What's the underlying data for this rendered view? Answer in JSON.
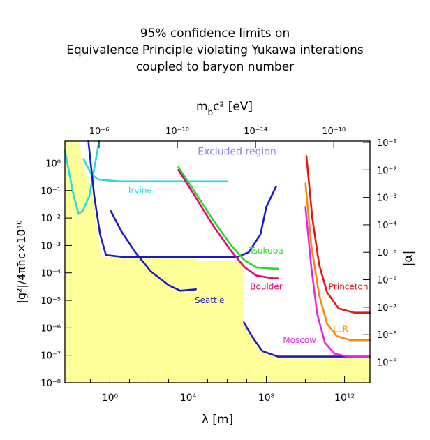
{
  "title_lines": [
    "95% confidence limits on",
    "Equivalence Principle violating Yukawa interations",
    "coupled to baryon number"
  ],
  "colors": {
    "excluded_fill": "#ffff99",
    "irvine": "#22dddd",
    "seattle": "#1a1acc",
    "tsukuba": "#22dd22",
    "boulder": "#ee0077",
    "princeton": "#ee1111",
    "llr": "#ff8800",
    "moscow": "#ee22ee",
    "excluded_label": "#8888ee"
  },
  "chart_data": {
    "type": "line",
    "xlabel": "λ [m]",
    "ylabel": "|g²|/4πħc×10⁴⁰",
    "top_axis_label": "m_bc² [eV]",
    "right_axis_label": "|α|",
    "x_scale": "log",
    "y_scale": "log",
    "xlim_log10": [
      -2.3,
      13.3
    ],
    "ylim_log10": [
      -8,
      0.8
    ],
    "x_ticks": [
      {
        "exp": 0,
        "label": "10⁰"
      },
      {
        "exp": 4,
        "label": "10⁴"
      },
      {
        "exp": 8,
        "label": "10⁸"
      },
      {
        "exp": 12,
        "label": "10¹²"
      }
    ],
    "y_ticks": [
      {
        "exp": 0,
        "label": "10⁰"
      },
      {
        "exp": -1,
        "label": "10⁻¹"
      },
      {
        "exp": -2,
        "label": "10⁻²"
      },
      {
        "exp": -3,
        "label": "10⁻³"
      },
      {
        "exp": -4,
        "label": "10⁻⁴"
      },
      {
        "exp": -5,
        "label": "10⁻⁵"
      },
      {
        "exp": -6,
        "label": "10⁻⁶"
      },
      {
        "exp": -7,
        "label": "10⁻⁷"
      },
      {
        "exp": -8,
        "label": "10⁻⁸"
      }
    ],
    "top_ticks": [
      {
        "x_exp": -0.55,
        "label": "10⁻⁶"
      },
      {
        "x_exp": 3.45,
        "label": "10⁻¹⁰"
      },
      {
        "x_exp": 7.45,
        "label": "10⁻¹⁴"
      },
      {
        "x_exp": 11.45,
        "label": "10⁻¹⁸"
      }
    ],
    "right_ticks": [
      {
        "y_exp": 0.75,
        "label": "10⁻¹"
      },
      {
        "y_exp": -0.25,
        "label": "10⁻²"
      },
      {
        "y_exp": -1.25,
        "label": "10⁻³"
      },
      {
        "y_exp": -2.25,
        "label": "10⁻⁴"
      },
      {
        "y_exp": -3.25,
        "label": "10⁻⁵"
      },
      {
        "y_exp": -4.25,
        "label": "10⁻⁶"
      },
      {
        "y_exp": -5.25,
        "label": "10⁻⁷"
      },
      {
        "y_exp": -6.25,
        "label": "10⁻⁸"
      },
      {
        "y_exp": -7.25,
        "label": "10⁻⁹"
      }
    ],
    "excluded_label": {
      "text": "Excluded region",
      "x_exp": 6.5,
      "y_exp": 0.3
    },
    "excluded_area": [
      [
        -2.3,
        0.8
      ],
      [
        -2.3,
        -8
      ],
      [
        13.3,
        -8
      ],
      [
        13.3,
        -7.05
      ],
      [
        8.8,
        -7.05
      ],
      [
        8.0,
        -6.95
      ],
      [
        7.4,
        -6.4
      ],
      [
        6.85,
        -5.8
      ],
      [
        6.85,
        -3.55
      ],
      [
        4.4,
        -3.55
      ],
      [
        4.4,
        -3.42
      ],
      [
        3.5,
        -3.42
      ],
      [
        2.0,
        -3.42
      ],
      [
        -0.4,
        -3.42
      ],
      [
        -0.5,
        -3.2
      ],
      [
        -0.85,
        -1.2
      ],
      [
        -1.3,
        -0.2
      ],
      [
        -1.6,
        0.8
      ]
    ],
    "series": [
      {
        "name": "Irvine",
        "color_key": "irvine",
        "label_at": [
          1.55,
          -1.1
        ],
        "segments": [
          [
            [
              -0.55,
              0.8
            ],
            [
              -0.75,
              0.0
            ],
            [
              -1.05,
              -1.2
            ],
            [
              -1.4,
              -1.75
            ],
            [
              -1.6,
              -1.85
            ],
            [
              -1.85,
              -1.2
            ],
            [
              -2.3,
              0.45
            ]
          ],
          [
            [
              -1.35,
              0.15
            ],
            [
              -0.95,
              -0.4
            ],
            [
              -0.6,
              -0.6
            ],
            [
              0.5,
              -0.67
            ],
            [
              6.0,
              -0.67
            ]
          ]
        ]
      },
      {
        "name": "Seattle",
        "color_key": "seattle",
        "label_at": [
          5.1,
          -5.1
        ],
        "segments": [
          [
            [
              -1.1,
              0.8
            ],
            [
              -0.8,
              -1.2
            ],
            [
              -0.5,
              -2.6
            ],
            [
              -0.2,
              -3.35
            ],
            [
              0.7,
              -3.42
            ],
            [
              4.4,
              -3.42
            ],
            [
              6.5,
              -3.42
            ],
            [
              7.1,
              -3.25
            ],
            [
              7.7,
              -2.6
            ],
            [
              8.0,
              -1.6
            ],
            [
              8.5,
              -0.85
            ]
          ],
          [
            [
              0.05,
              -1.75
            ],
            [
              0.6,
              -2.5
            ],
            [
              1.3,
              -3.25
            ],
            [
              2.1,
              -3.95
            ],
            [
              3.0,
              -4.45
            ],
            [
              3.6,
              -4.65
            ],
            [
              4.4,
              -4.6
            ]
          ],
          [
            [
              6.85,
              -5.8
            ],
            [
              7.3,
              -6.35
            ],
            [
              7.8,
              -6.85
            ],
            [
              8.6,
              -7.05
            ],
            [
              13.3,
              -7.05
            ]
          ]
        ]
      },
      {
        "name": "Tsukuba",
        "color_key": "tsukuba",
        "label_at": [
          8.0,
          -3.3
        ],
        "segments": [
          [
            [
              3.5,
              -0.15
            ],
            [
              4.3,
              -1.0
            ],
            [
              5.3,
              -2.1
            ],
            [
              6.2,
              -3.0
            ],
            [
              6.9,
              -3.55
            ],
            [
              7.5,
              -3.8
            ],
            [
              8.4,
              -3.85
            ],
            [
              8.6,
              -3.85
            ]
          ]
        ]
      },
      {
        "name": "Boulder",
        "color_key": "boulder",
        "label_at": [
          8.0,
          -4.6
        ],
        "segments": [
          [
            [
              3.5,
              -0.25
            ],
            [
              4.3,
              -1.15
            ],
            [
              5.3,
              -2.3
            ],
            [
              6.2,
              -3.2
            ],
            [
              6.9,
              -3.8
            ],
            [
              7.5,
              -4.1
            ],
            [
              8.4,
              -4.2
            ],
            [
              8.6,
              -4.2
            ]
          ]
        ]
      },
      {
        "name": "Princeton",
        "color_key": "princeton",
        "label_at": [
          12.2,
          -4.6
        ],
        "segments": [
          [
            [
              10.05,
              0.25
            ],
            [
              10.35,
              -2.0
            ],
            [
              10.7,
              -3.7
            ],
            [
              11.1,
              -4.7
            ],
            [
              11.7,
              -5.3
            ],
            [
              12.5,
              -5.45
            ],
            [
              13.3,
              -5.45
            ]
          ]
        ]
      },
      {
        "name": "LLR",
        "color_key": "llr",
        "label_at": [
          11.8,
          -6.15
        ],
        "segments": [
          [
            [
              10.0,
              -0.75
            ],
            [
              10.3,
              -3.0
            ],
            [
              10.7,
              -4.8
            ],
            [
              11.1,
              -5.85
            ],
            [
              11.6,
              -6.3
            ],
            [
              12.3,
              -6.45
            ],
            [
              13.3,
              -6.45
            ]
          ]
        ]
      },
      {
        "name": "Moscow",
        "color_key": "moscow",
        "label_at": [
          9.7,
          -6.55
        ],
        "segments": [
          [
            [
              10.0,
              -1.6
            ],
            [
              10.3,
              -3.8
            ],
            [
              10.6,
              -5.5
            ],
            [
              11.0,
              -6.55
            ],
            [
              11.5,
              -6.95
            ],
            [
              12.2,
              -7.05
            ],
            [
              13.3,
              -7.05
            ]
          ]
        ]
      }
    ]
  }
}
